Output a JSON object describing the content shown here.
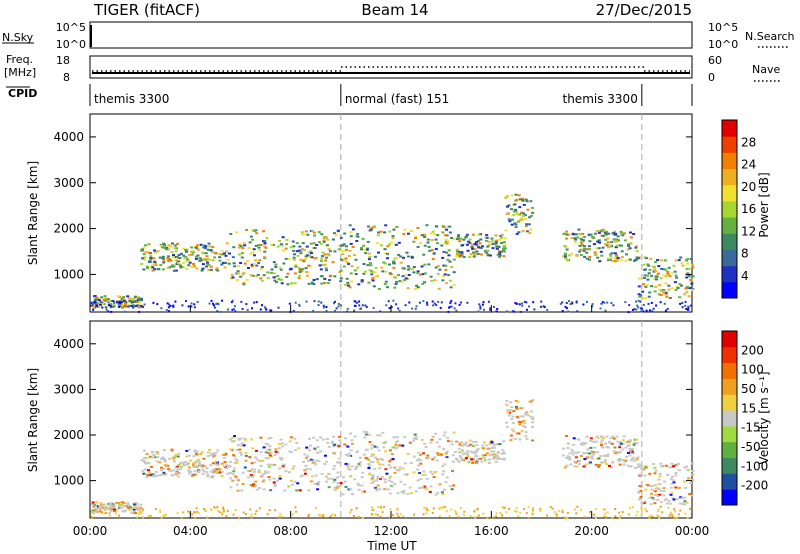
{
  "header": {
    "radar": "TIGER (fitACF)",
    "beam": "Beam 14",
    "date": "27/Dec/2015"
  },
  "status_panels": {
    "nsky_label": "N.Sky",
    "nsky_ticks": [
      "10^5",
      "10^0"
    ],
    "nsearch_label": "N.Search",
    "nsearch_ticks": [
      "10^5",
      "10^0"
    ],
    "freq_label_1": "Freq.",
    "freq_label_2": "[MHz]",
    "freq_ticks": [
      "18",
      "8"
    ],
    "nave_label": "Nave",
    "nave_ticks": [
      "60",
      "0"
    ],
    "cpid_label": "CPID",
    "cpid_segments": [
      {
        "label": "themis 3300",
        "start_hour": 0,
        "end_hour": 10
      },
      {
        "label": "normal (fast) 151",
        "start_hour": 10,
        "end_hour": 22
      },
      {
        "label": "themis 3300",
        "start_hour": 22,
        "end_hour": 24
      }
    ]
  },
  "chart_data": [
    {
      "type": "heatmap",
      "name": "power",
      "ylabel": "Slant Range [km]",
      "xlabel": "",
      "x_ticks": [
        "00:00",
        "04:00",
        "08:00",
        "12:00",
        "16:00",
        "20:00",
        "00:00"
      ],
      "y_ticks": [
        "1000",
        "2000",
        "3000",
        "4000"
      ],
      "xlim_hours": [
        0,
        24
      ],
      "ylim_km": [
        180,
        4500
      ],
      "colorbar_label": "Power [dB]",
      "colorbar_ticks": [
        "28",
        "24",
        "20",
        "16",
        "12",
        "8",
        "4"
      ],
      "colorbar_colors": [
        "#0000ff",
        "#2030c0",
        "#3a6a9a",
        "#3d8a60",
        "#64b040",
        "#a8d630",
        "#f0e030",
        "#f0b020",
        "#f08000",
        "#f04000",
        "#e00000"
      ],
      "scatter_regions": [
        {
          "t0": 0.0,
          "t1": 2.0,
          "r0": 300,
          "r1": 550
        },
        {
          "t0": 2.0,
          "t1": 5.5,
          "r0": 1100,
          "r1": 1700
        },
        {
          "t0": 5.5,
          "t1": 10.0,
          "r0": 800,
          "r1": 2000
        },
        {
          "t0": 10.0,
          "t1": 14.5,
          "r0": 700,
          "r1": 2100
        },
        {
          "t0": 14.5,
          "t1": 16.5,
          "r0": 1400,
          "r1": 1900
        },
        {
          "t0": 16.5,
          "t1": 17.6,
          "r0": 1900,
          "r1": 2800
        },
        {
          "t0": 18.8,
          "t1": 21.8,
          "r0": 1300,
          "r1": 2000
        },
        {
          "t0": 21.8,
          "t1": 24.0,
          "r0": 500,
          "r1": 1400
        }
      ]
    },
    {
      "type": "heatmap",
      "name": "velocity",
      "ylabel": "Slant Range [km]",
      "xlabel": "Time UT",
      "x_ticks": [
        "00:00",
        "04:00",
        "08:00",
        "12:00",
        "16:00",
        "20:00",
        "00:00"
      ],
      "y_ticks": [
        "1000",
        "2000",
        "3000",
        "4000"
      ],
      "xlim_hours": [
        0,
        24
      ],
      "ylim_km": [
        180,
        4500
      ],
      "colorbar_label": "Velocity [m s⁻¹]",
      "colorbar_ticks": [
        "200",
        "100",
        "50",
        "15",
        "-15",
        "-50",
        "-100",
        "-200"
      ],
      "colorbar_colors": [
        "#0000ff",
        "#2050a0",
        "#3d8a60",
        "#60b040",
        "#a0dc40",
        "#c8c8c8",
        "#f0d040",
        "#f0a020",
        "#f07000",
        "#f03000",
        "#e00000"
      ],
      "scatter_regions": [
        {
          "t0": 0.0,
          "t1": 2.0,
          "r0": 300,
          "r1": 550
        },
        {
          "t0": 2.0,
          "t1": 5.5,
          "r0": 1100,
          "r1": 1700
        },
        {
          "t0": 5.5,
          "t1": 10.0,
          "r0": 800,
          "r1": 2000
        },
        {
          "t0": 10.0,
          "t1": 14.5,
          "r0": 700,
          "r1": 2100
        },
        {
          "t0": 14.5,
          "t1": 16.5,
          "r0": 1400,
          "r1": 1900
        },
        {
          "t0": 16.5,
          "t1": 17.6,
          "r0": 1900,
          "r1": 2800
        },
        {
          "t0": 18.8,
          "t1": 21.8,
          "r0": 1300,
          "r1": 2000
        },
        {
          "t0": 21.8,
          "t1": 24.0,
          "r0": 500,
          "r1": 1400
        }
      ]
    }
  ]
}
